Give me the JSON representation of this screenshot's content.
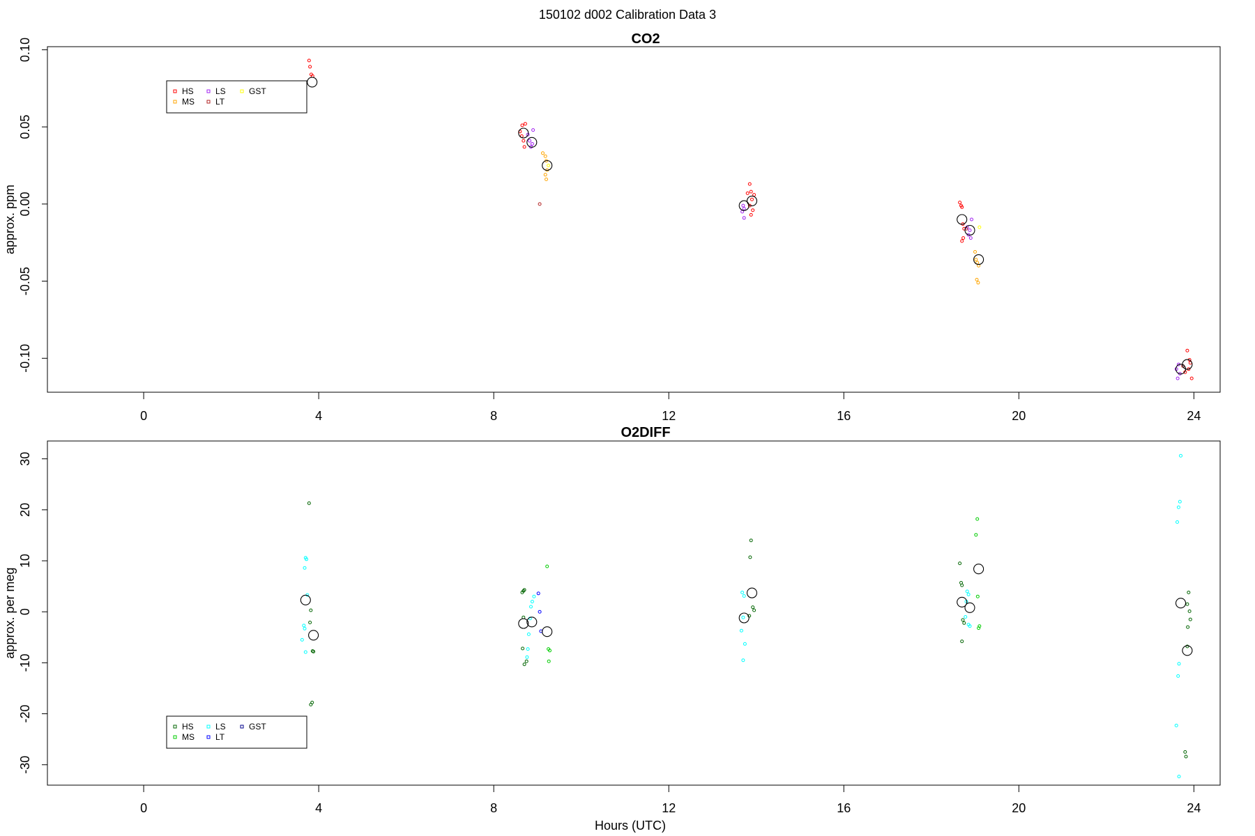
{
  "figure": {
    "title": "150102   d002   Calibration Data 3",
    "xlabel": "Hours (UTC)"
  },
  "chart_data": [
    {
      "type": "scatter",
      "title": "CO2",
      "xlabel": "",
      "ylabel": "approx. ppm",
      "xlim": [
        -2.2,
        24.6
      ],
      "ylim": [
        -0.122,
        0.102
      ],
      "xticks": [
        0,
        4,
        8,
        12,
        16,
        20,
        24
      ],
      "yticks": [
        -0.1,
        -0.05,
        0.0,
        0.05,
        0.1
      ],
      "ytick_labels": [
        "-0.10",
        "-0.05",
        "0.00",
        "0.05",
        "0.10"
      ],
      "legend": {
        "position": "top-left",
        "entries": [
          {
            "name": "HS",
            "color": "#ff0000"
          },
          {
            "name": "MS",
            "color": "#ffa500"
          },
          {
            "name": "LS",
            "color": "#a020f0"
          },
          {
            "name": "LT",
            "color": "#b22222"
          },
          {
            "name": "GST",
            "color": "#ffff00"
          }
        ]
      },
      "series": [
        {
          "name": "HS",
          "color": "#ff0000",
          "points": [
            [
              3.78,
              0.093
            ],
            [
              3.8,
              0.089
            ],
            [
              3.83,
              0.084
            ],
            [
              3.86,
              0.083
            ],
            [
              8.65,
              0.051
            ],
            [
              8.72,
              0.052
            ],
            [
              8.6,
              0.047
            ],
            [
              8.64,
              0.044
            ],
            [
              8.68,
              0.041
            ],
            [
              8.7,
              0.037
            ],
            [
              13.85,
              0.013
            ],
            [
              13.88,
              0.008
            ],
            [
              13.8,
              0.007
            ],
            [
              13.95,
              0.006
            ],
            [
              13.9,
              0.003
            ],
            [
              13.92,
              -0.004
            ],
            [
              13.88,
              -0.007
            ],
            [
              13.85,
              -0.001
            ],
            [
              18.65,
              0.001
            ],
            [
              18.68,
              -0.001
            ],
            [
              18.7,
              -0.002
            ],
            [
              18.72,
              -0.013
            ],
            [
              18.75,
              -0.016
            ],
            [
              18.73,
              -0.022
            ],
            [
              18.7,
              -0.024
            ],
            [
              23.85,
              -0.095
            ],
            [
              23.92,
              -0.103
            ],
            [
              23.88,
              -0.107
            ],
            [
              23.9,
              -0.101
            ],
            [
              23.95,
              -0.113
            ],
            [
              23.8,
              -0.109
            ]
          ]
        },
        {
          "name": "MS",
          "color": "#ffa500",
          "points": [
            [
              9.12,
              0.033
            ],
            [
              9.18,
              0.031
            ],
            [
              9.2,
              0.028
            ],
            [
              9.22,
              0.022
            ],
            [
              9.18,
              0.019
            ],
            [
              9.2,
              0.016
            ],
            [
              19.0,
              -0.031
            ],
            [
              19.02,
              -0.036
            ],
            [
              19.05,
              -0.038
            ],
            [
              19.08,
              -0.04
            ],
            [
              19.04,
              -0.049
            ],
            [
              19.07,
              -0.051
            ]
          ]
        },
        {
          "name": "LS",
          "color": "#a020f0",
          "points": [
            [
              8.78,
              0.045
            ],
            [
              8.9,
              0.048
            ],
            [
              8.82,
              0.041
            ],
            [
              8.85,
              0.037
            ],
            [
              8.88,
              0.039
            ],
            [
              13.7,
              -0.001
            ],
            [
              13.72,
              -0.003
            ],
            [
              13.68,
              -0.005
            ],
            [
              13.72,
              -0.009
            ],
            [
              18.82,
              -0.015
            ],
            [
              18.88,
              -0.017
            ],
            [
              18.85,
              -0.02
            ],
            [
              18.92,
              -0.01
            ],
            [
              18.9,
              -0.022
            ],
            [
              23.6,
              -0.107
            ],
            [
              23.65,
              -0.104
            ],
            [
              23.68,
              -0.11
            ],
            [
              23.63,
              -0.113
            ]
          ]
        },
        {
          "name": "LT",
          "color": "#b22222",
          "points": [
            [
              9.05,
              0.0
            ],
            [
              18.8,
              -0.016
            ],
            [
              23.75,
              -0.105
            ]
          ]
        },
        {
          "name": "GST",
          "color": "#ffff00",
          "points": [
            [
              9.25,
              0.025
            ],
            [
              19.1,
              -0.015
            ]
          ]
        },
        {
          "name": "mean",
          "color": "#000000",
          "points": [
            [
              3.85,
              0.079
            ],
            [
              8.68,
              0.046
            ],
            [
              8.87,
              0.04
            ],
            [
              9.22,
              0.025
            ],
            [
              13.72,
              -0.001
            ],
            [
              13.9,
              0.002
            ],
            [
              18.7,
              -0.01
            ],
            [
              18.88,
              -0.017
            ],
            [
              19.08,
              -0.036
            ],
            [
              23.7,
              -0.107
            ],
            [
              23.85,
              -0.104
            ]
          ]
        }
      ]
    },
    {
      "type": "scatter",
      "title": "O2DIFF",
      "xlabel": "Hours (UTC)",
      "ylabel": "approx. per meg",
      "xlim": [
        -2.2,
        24.6
      ],
      "ylim": [
        -34.0,
        33.5
      ],
      "xticks": [
        0,
        4,
        8,
        12,
        16,
        20,
        24
      ],
      "yticks": [
        -30,
        -20,
        -10,
        0,
        10,
        20,
        30
      ],
      "ytick_labels": [
        "-30",
        "-20",
        "-10",
        "0",
        "10",
        "20",
        "30"
      ],
      "legend": {
        "position": "bottom-left",
        "entries": [
          {
            "name": "HS",
            "color": "#006400"
          },
          {
            "name": "MS",
            "color": "#00cc00"
          },
          {
            "name": "LS",
            "color": "#00ffff"
          },
          {
            "name": "LT",
            "color": "#0000ff"
          },
          {
            "name": "GST",
            "color": "#00008b"
          }
        ]
      },
      "series": [
        {
          "name": "HS",
          "color": "#006400",
          "points": [
            [
              3.78,
              21.3
            ],
            [
              3.82,
              0.3
            ],
            [
              3.8,
              -2.1
            ],
            [
              3.86,
              -7.7
            ],
            [
              3.88,
              -7.8
            ],
            [
              3.85,
              -17.8
            ],
            [
              3.82,
              -18.2
            ],
            [
              8.68,
              4.1
            ],
            [
              8.65,
              3.8
            ],
            [
              8.7,
              4.3
            ],
            [
              8.68,
              -1.1
            ],
            [
              8.66,
              -7.2
            ],
            [
              8.7,
              -10.3
            ],
            [
              8.75,
              -9.7
            ],
            [
              13.88,
              14.0
            ],
            [
              13.86,
              10.7
            ],
            [
              13.92,
              0.9
            ],
            [
              13.95,
              0.3
            ],
            [
              13.84,
              -0.8
            ],
            [
              18.65,
              9.5
            ],
            [
              18.68,
              5.7
            ],
            [
              18.7,
              5.2
            ],
            [
              18.72,
              -1.6
            ],
            [
              18.75,
              -2.2
            ],
            [
              18.7,
              -5.8
            ],
            [
              23.88,
              3.8
            ],
            [
              23.85,
              1.5
            ],
            [
              23.92,
              -1.5
            ],
            [
              23.9,
              0.1
            ],
            [
              23.86,
              -3.0
            ],
            [
              23.82,
              -28.4
            ],
            [
              23.8,
              -27.5
            ],
            [
              23.85,
              -6.8
            ]
          ]
        },
        {
          "name": "MS",
          "color": "#00cc00",
          "points": [
            [
              9.22,
              8.9
            ],
            [
              9.25,
              -7.3
            ],
            [
              9.28,
              -7.6
            ],
            [
              9.26,
              -9.7
            ],
            [
              19.05,
              18.2
            ],
            [
              19.02,
              15.1
            ],
            [
              19.06,
              3.0
            ],
            [
              19.1,
              -2.8
            ],
            [
              19.08,
              -3.2
            ]
          ]
        },
        {
          "name": "LS",
          "color": "#00ffff",
          "points": [
            [
              3.7,
              10.6
            ],
            [
              3.72,
              10.3
            ],
            [
              3.68,
              8.6
            ],
            [
              3.74,
              3.3
            ],
            [
              3.66,
              -2.7
            ],
            [
              3.68,
              -3.3
            ],
            [
              3.62,
              -5.5
            ],
            [
              3.7,
              -7.9
            ],
            [
              8.92,
              3.0
            ],
            [
              8.88,
              2.0
            ],
            [
              8.85,
              1.0
            ],
            [
              8.83,
              -1.3
            ],
            [
              8.8,
              -4.4
            ],
            [
              8.78,
              -7.3
            ],
            [
              8.76,
              -8.9
            ],
            [
              13.68,
              3.8
            ],
            [
              13.72,
              3.1
            ],
            [
              13.7,
              -1.1
            ],
            [
              13.66,
              -3.7
            ],
            [
              13.74,
              -6.3
            ],
            [
              13.7,
              -9.5
            ],
            [
              18.82,
              4.0
            ],
            [
              18.85,
              3.4
            ],
            [
              18.8,
              2.0
            ],
            [
              18.78,
              -1.0
            ],
            [
              18.85,
              -2.5
            ],
            [
              18.88,
              -2.8
            ],
            [
              23.7,
              30.6
            ],
            [
              23.68,
              21.6
            ],
            [
              23.65,
              20.5
            ],
            [
              23.62,
              17.6
            ],
            [
              23.66,
              -10.2
            ],
            [
              23.64,
              -12.6
            ],
            [
              23.6,
              -22.3
            ],
            [
              23.66,
              -32.3
            ]
          ]
        },
        {
          "name": "LT",
          "color": "#0000ff",
          "points": [
            [
              9.02,
              3.6
            ],
            [
              9.05,
              0.0
            ],
            [
              9.08,
              -3.8
            ]
          ]
        },
        {
          "name": "mean",
          "color": "#000000",
          "points": [
            [
              3.7,
              2.3
            ],
            [
              3.88,
              -4.6
            ],
            [
              8.68,
              -2.3
            ],
            [
              8.87,
              -2.0
            ],
            [
              9.22,
              -3.9
            ],
            [
              13.72,
              -1.2
            ],
            [
              13.9,
              3.7
            ],
            [
              18.7,
              1.9
            ],
            [
              18.88,
              0.8
            ],
            [
              19.08,
              8.4
            ],
            [
              23.7,
              1.7
            ],
            [
              23.85,
              -7.6
            ]
          ]
        }
      ]
    }
  ]
}
